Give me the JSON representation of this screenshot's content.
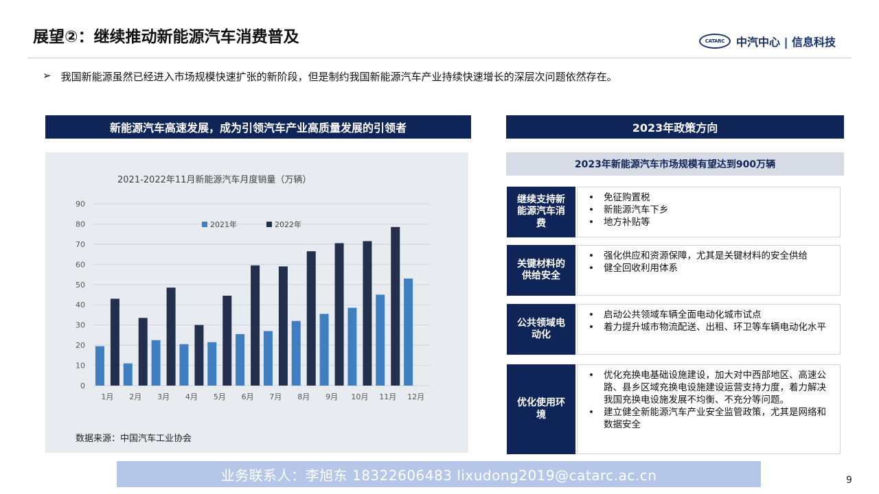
{
  "slide": {
    "title": "展望②：继续推动新能源汽车消费普及",
    "logo_mark": "CATARC",
    "logo_text": "中汽中心 | 信息科技",
    "lead_marker": "➢",
    "lead": "我国新能源虽然已经进入市场规模快速扩张的新阶段，但是制约我国新能源汽车产业持续快速增长的深层次问题依然存在。",
    "page_number": "9"
  },
  "left_panel": {
    "header": "新能源汽车高速发展，成为引领汽车产业高质量发展的引领者",
    "source": "数据来源：中国汽车工业协会"
  },
  "chart_data": {
    "type": "bar",
    "title": "2021-2022年11月新能源汽车月度销量（万辆）",
    "categories": [
      "1月",
      "2月",
      "3月",
      "4月",
      "5月",
      "6月",
      "7月",
      "8月",
      "9月",
      "10月",
      "11月",
      "12月"
    ],
    "series": [
      {
        "name": "2021年",
        "color": "#3f7fc1",
        "values": [
          19.5,
          11,
          22.5,
          20.5,
          21.5,
          25.5,
          27,
          32,
          35.5,
          38.5,
          45,
          53
        ]
      },
      {
        "name": "2022年",
        "color": "#22304d",
        "values": [
          43,
          33.5,
          48.5,
          30,
          44.5,
          59.5,
          59,
          66.5,
          70.5,
          71.5,
          78.5,
          null
        ]
      }
    ],
    "yticks": [
      0,
      10,
      20,
      30,
      40,
      50,
      60,
      70,
      80,
      90
    ],
    "ylim": [
      0,
      90
    ],
    "grid": true,
    "legend_position": "top-left"
  },
  "right_panel": {
    "header": "2023年政策方向",
    "subheader": "2023年新能源汽车市场规模有望达到900万辆",
    "policies": [
      {
        "label": "继续支持新能源汽车消费",
        "items": [
          "免征购置税",
          "新能源汽车下乡",
          "地方补贴等"
        ]
      },
      {
        "label": "关键材料的供给安全",
        "items": [
          "强化供应和资源保障，尤其是关键材料的安全供给",
          "健全回收利用体系"
        ]
      },
      {
        "label": "公共领域电动化",
        "items": [
          "启动公共领域车辆全面电动化城市试点",
          "着力提升城市物流配送、出租、环卫等车辆电动化水平"
        ]
      },
      {
        "label": "优化使用环境",
        "items": [
          "优化充换电基础设施建设，加大对中西部地区、高速公路、县乡区域充换电设施建设运营支持力度，着力解决我国充换电设施发展不均衡、不充分等问题。",
          "建立健全新能源汽车产业安全监管政策，尤其是网络和数据安全"
        ]
      }
    ]
  },
  "footer": {
    "contact": "业务联系人：李旭东  18322606483  lixudong2019@catarc.ac.cn"
  }
}
